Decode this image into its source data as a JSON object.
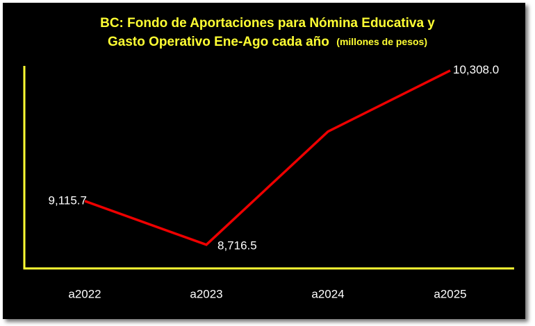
{
  "chart_data": {
    "type": "line",
    "title": [
      "BC: Fondo de Aportaciones para Nómina Educativa y",
      "Gasto Operativo Ene-Ago cada año"
    ],
    "subtitle": "(millones de pesos)",
    "categories": [
      "a2022",
      "a2023",
      "a2024",
      "a2025"
    ],
    "series": [
      {
        "color": "#ee0000",
        "values": [
          9115.7,
          8716.5,
          9750,
          10308.0
        ],
        "value_labels": [
          "9,115.7",
          "8,716.5",
          null,
          "10,308.0"
        ]
      }
    ],
    "ylim": [
      8500,
      10350
    ],
    "axis_color": "#ffff33",
    "grid": false
  }
}
